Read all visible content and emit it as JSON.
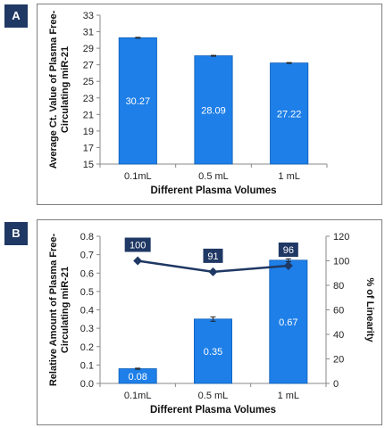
{
  "chart_data": [
    {
      "panel_label": "A",
      "type": "bar",
      "categories": [
        "0.1mL",
        "0.5 mL",
        "1 mL"
      ],
      "values": [
        30.27,
        28.09,
        27.22
      ],
      "value_labels": [
        "30.27",
        "28.09",
        "27.22"
      ],
      "errors": [
        0.05,
        0.05,
        0.05
      ],
      "xlabel": "Different Plasma Volumes",
      "ylabel": [
        "Average Ct. Value of Plasma Free-",
        "Circulating miR-21"
      ],
      "ylim": [
        15,
        33
      ],
      "yticks": [
        "15",
        "17",
        "19",
        "21",
        "23",
        "25",
        "27",
        "29",
        "31",
        "33"
      ],
      "bar_color": "#1e7fe8",
      "grid": false
    },
    {
      "panel_label": "B",
      "type": "bar+line",
      "categories": [
        "0.1mL",
        "0.5 mL",
        "1 mL"
      ],
      "values": [
        0.08,
        0.35,
        0.67
      ],
      "value_labels": [
        "0.08",
        "0.35",
        "0.67"
      ],
      "errors": [
        0.003,
        0.012,
        0.008
      ],
      "line_values": [
        100,
        91,
        96
      ],
      "line_labels": [
        "100",
        "91",
        "96"
      ],
      "xlabel": "Different Plasma Volumes",
      "ylabel": [
        "Relative Amount of Plasma Free-",
        "Circulating miR-21"
      ],
      "ylabel_right": "% of Linearity",
      "ylim": [
        0,
        0.8
      ],
      "yticks": [
        "0.0",
        "0.1",
        "0.2",
        "0.3",
        "0.4",
        "0.5",
        "0.6",
        "0.7",
        "0.8"
      ],
      "ylim_right": [
        0,
        120
      ],
      "yticks_right": [
        "0",
        "20",
        "40",
        "60",
        "80",
        "100",
        "120"
      ],
      "bar_color": "#1e7fe8",
      "line_color": "#1f3864",
      "grid": false
    }
  ]
}
